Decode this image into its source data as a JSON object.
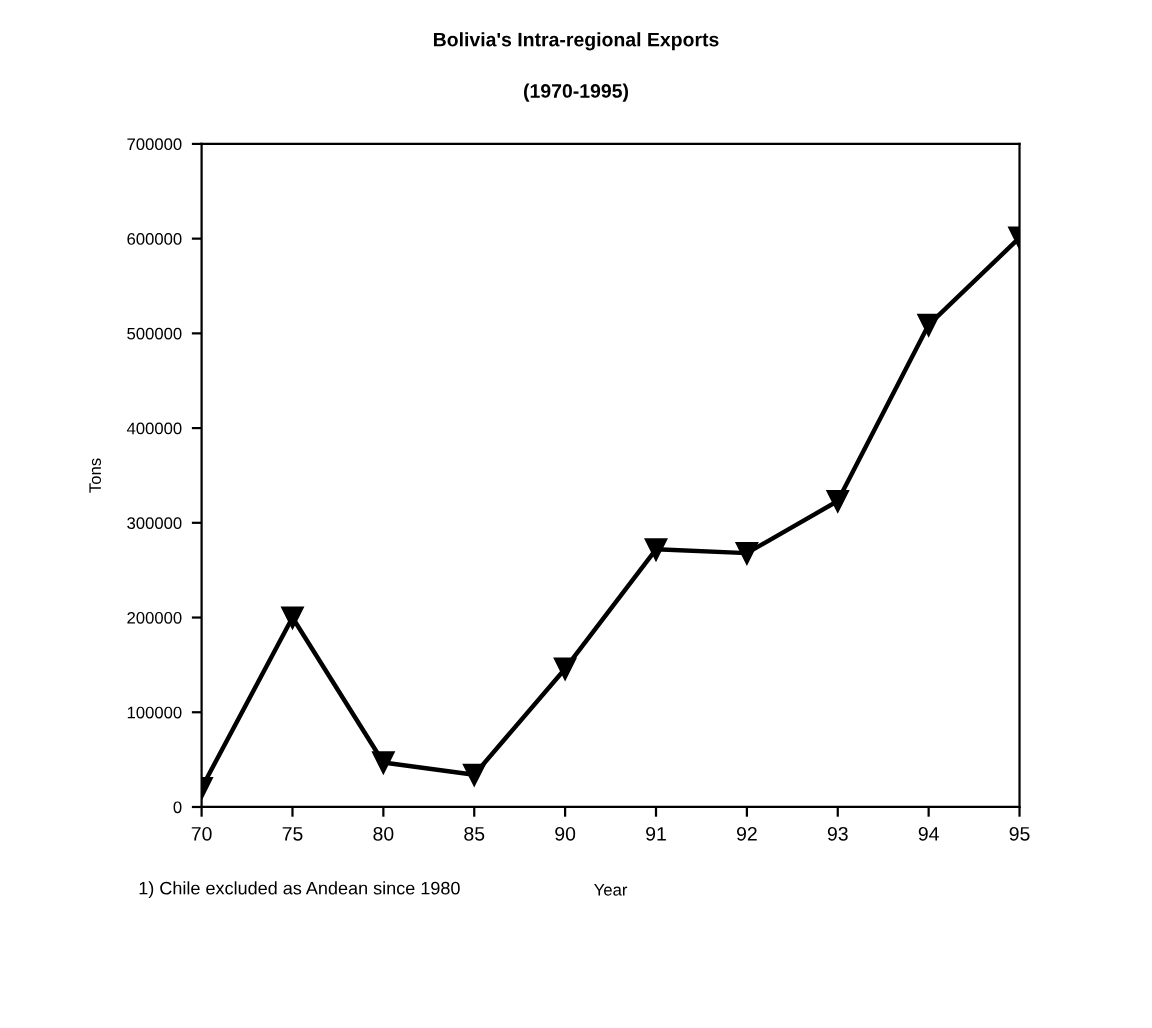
{
  "chart_data": {
    "type": "line",
    "title": "Bolivia's Intra-regional Exports",
    "subtitle": "(1970-1995)",
    "xlabel": "Year",
    "ylabel": "Tons",
    "categories": [
      "70",
      "75",
      "80",
      "85",
      "90",
      "91",
      "92",
      "93",
      "94",
      "95"
    ],
    "series": [
      {
        "color": "#000000",
        "values": [
          20000,
          200000,
          47000,
          34000,
          146000,
          272000,
          268000,
          323000,
          509000,
          601000
        ]
      }
    ],
    "ylim": [
      0,
      700000
    ],
    "yticks": [
      0,
      100000,
      200000,
      300000,
      400000,
      500000,
      600000,
      700000
    ],
    "marker": "triangle",
    "line_style": "solid",
    "grid": false,
    "legend": false,
    "annotations": [
      "1) Chile excluded as Andean since 1980"
    ]
  }
}
